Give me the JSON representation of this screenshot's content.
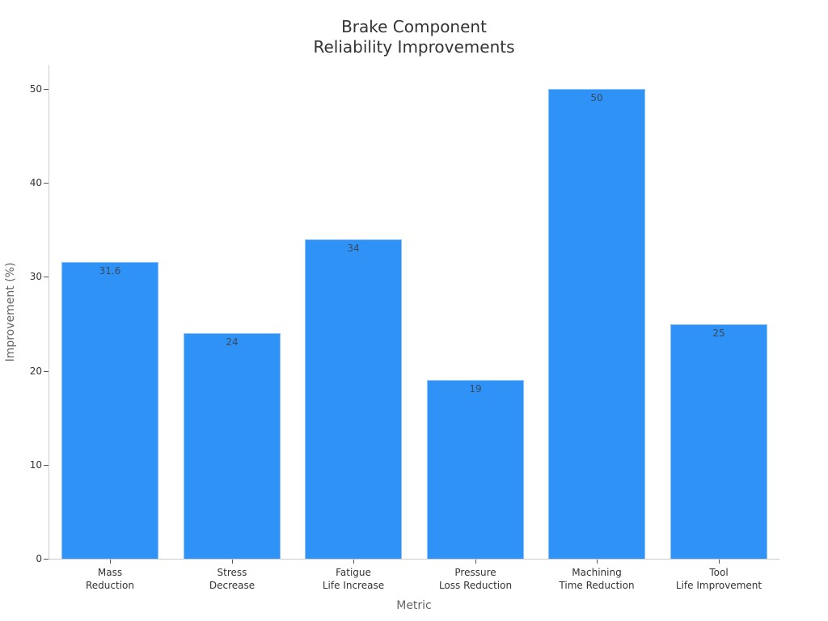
{
  "chart_data": {
    "type": "bar",
    "title": "Brake Component\nReliability Improvements",
    "title_lines": [
      "Brake Component",
      "Reliability Improvements"
    ],
    "xlabel": "Metric",
    "ylabel": "Improvement (%)",
    "categories": [
      "Mass Reduction",
      "Stress Decrease",
      "Fatigue Life Increase",
      "Pressure Loss Reduction",
      "Machining Time Reduction",
      "Tool Life Improvement"
    ],
    "category_lines": [
      [
        "Mass",
        "Reduction"
      ],
      [
        "Stress",
        "Decrease"
      ],
      [
        "Fatigue",
        "Life Increase"
      ],
      [
        "Pressure",
        "Loss Reduction"
      ],
      [
        "Machining",
        "Time Reduction"
      ],
      [
        "Tool",
        "Life Improvement"
      ]
    ],
    "values": [
      31.6,
      24,
      34,
      19,
      50,
      25
    ],
    "value_labels": [
      "31.6",
      "24",
      "34",
      "19",
      "50",
      "25"
    ],
    "ylim": [
      0,
      52.5
    ],
    "yticks": [
      0,
      10,
      20,
      30,
      40,
      50
    ],
    "ytick_labels": [
      "0",
      "10",
      "20",
      "30",
      "40",
      "50"
    ],
    "grid": false,
    "legend": null,
    "bar_color": "#2f92f7"
  }
}
